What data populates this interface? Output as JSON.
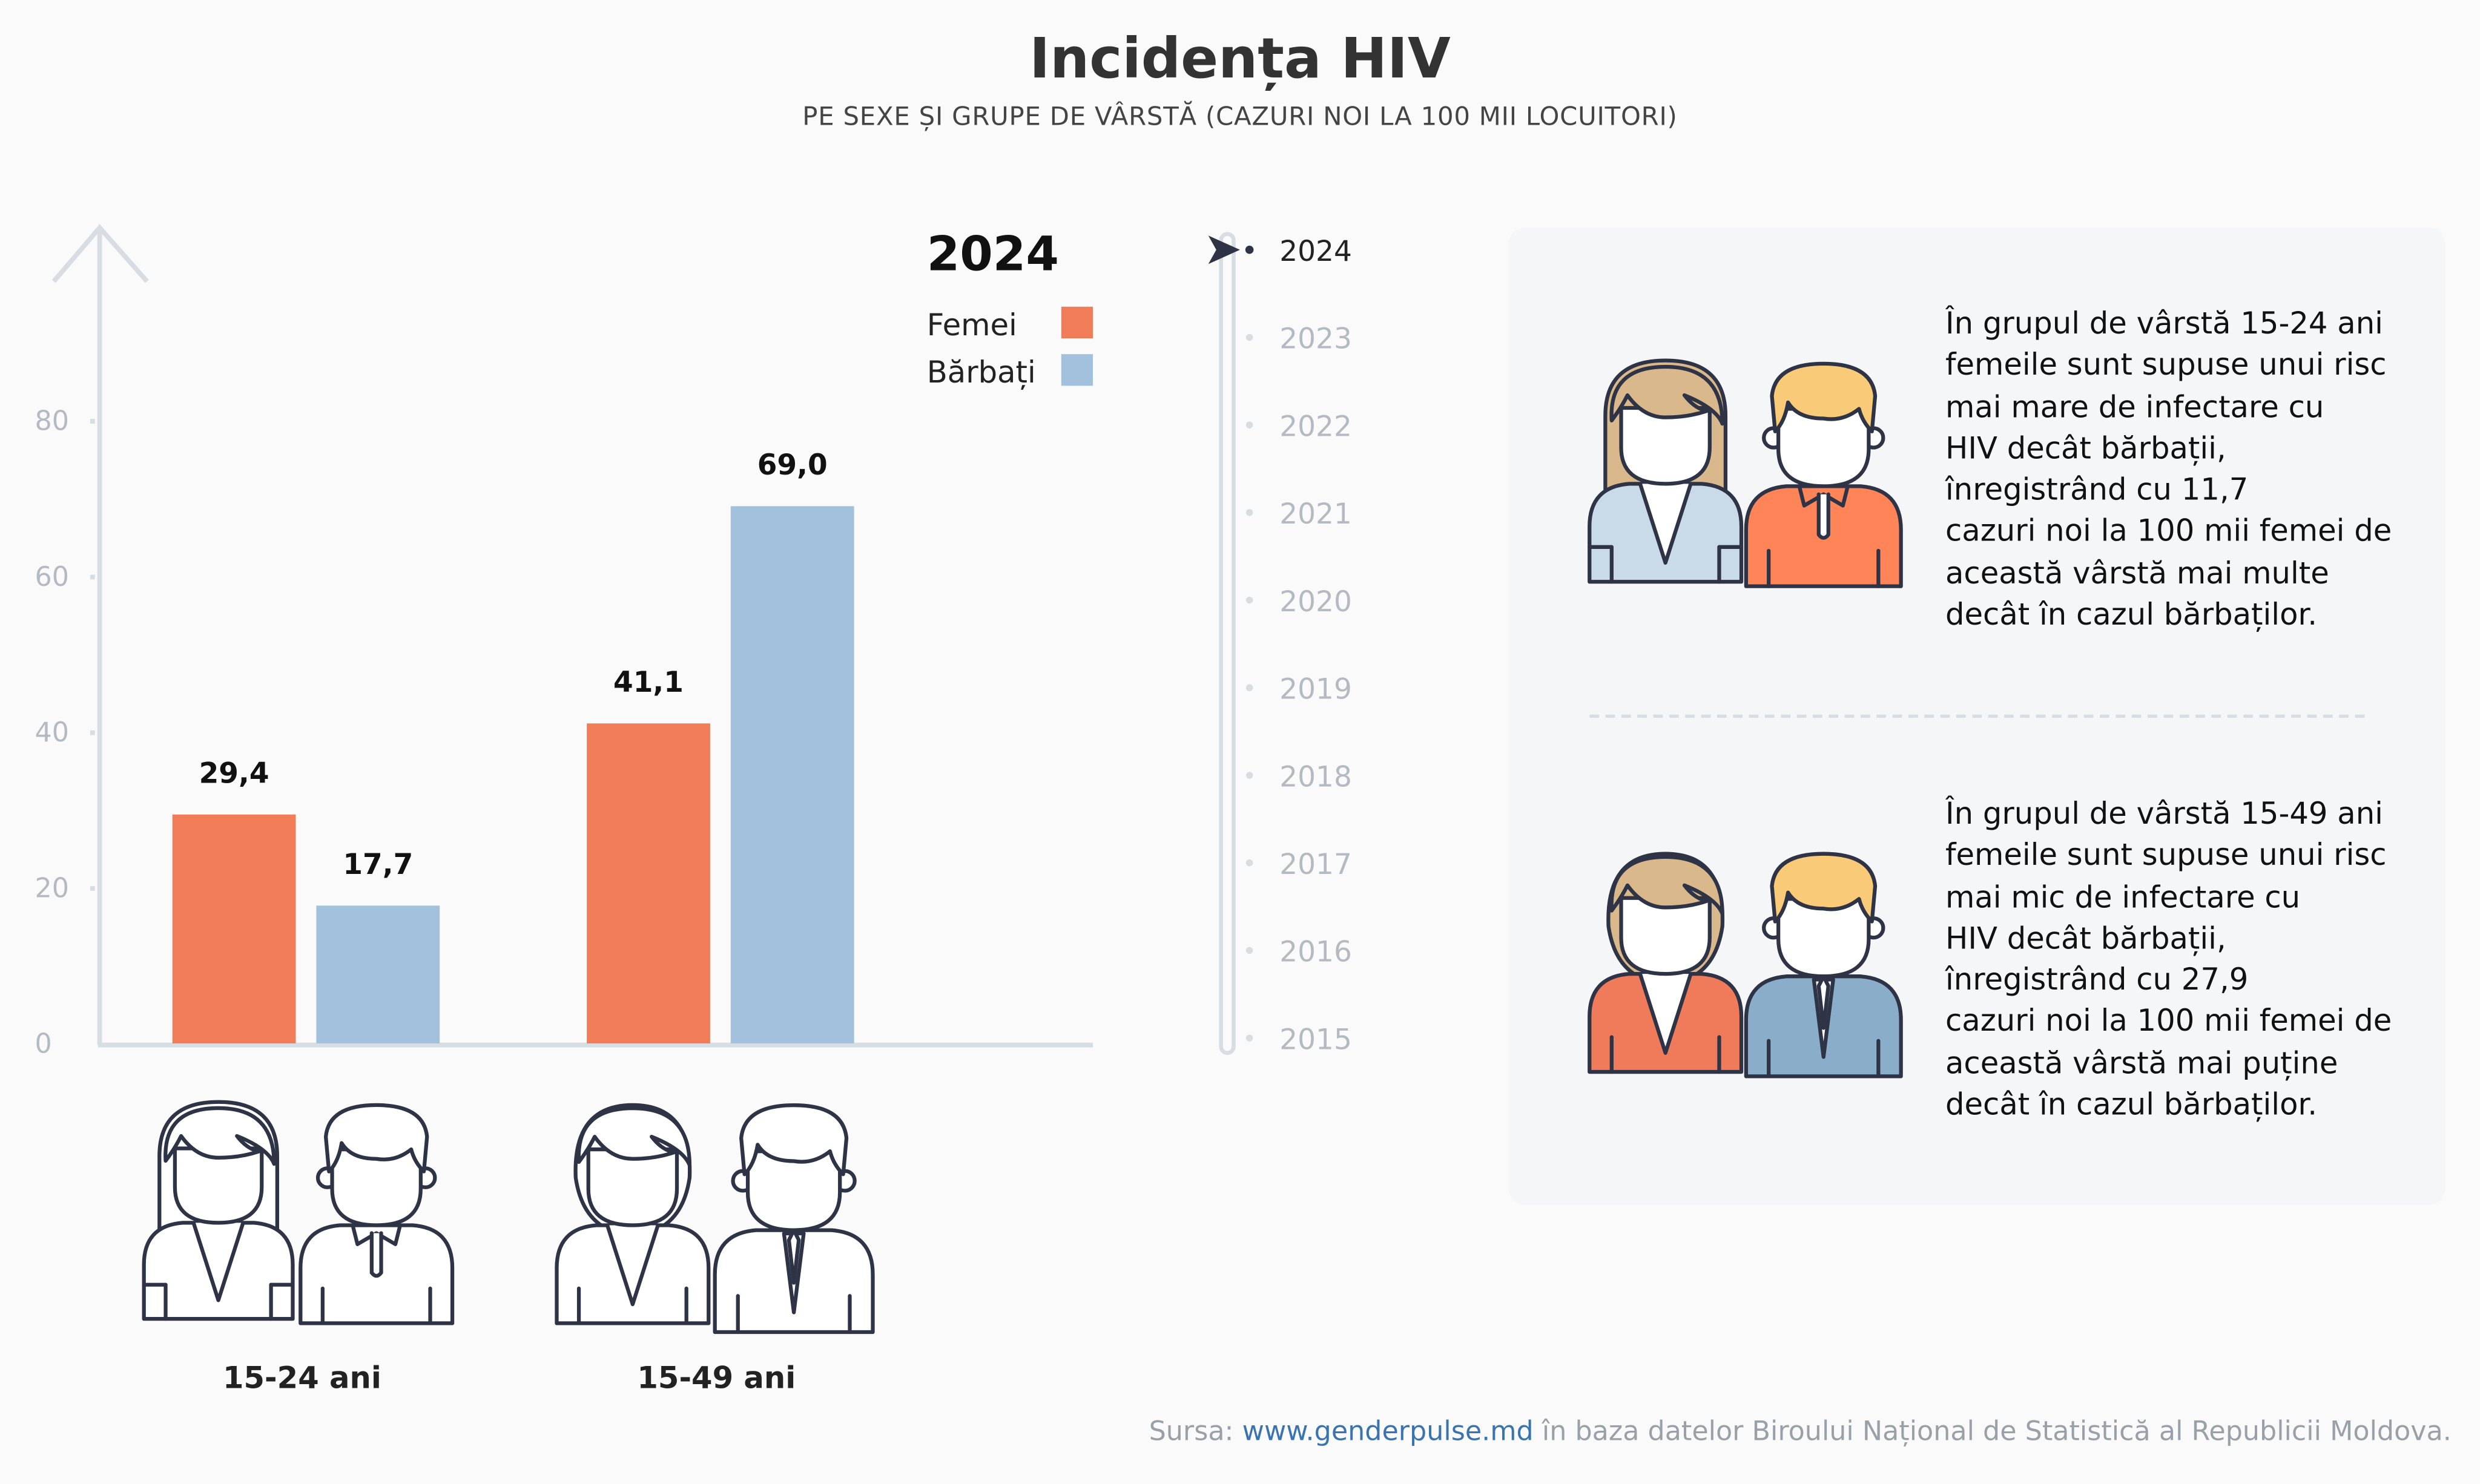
{
  "title": "Incidența HIV",
  "subtitle": "PE SEXE ȘI GRUPE DE VÂRSTĂ (CAZURI NOI LA 100 MII LOCUITORI)",
  "chart_data": {
    "type": "bar",
    "year": "2024",
    "categories": [
      "15-24 ani",
      "15-49 ani"
    ],
    "series": [
      {
        "name": "Femei",
        "values": [
          29.4,
          41.1
        ],
        "labels": [
          "29,4",
          "41,1"
        ],
        "color": "#f07c58"
      },
      {
        "name": "Bărbați",
        "values": [
          17.7,
          69.0
        ],
        "labels": [
          "17,7",
          "69,0"
        ],
        "color": "#a2c1dc"
      }
    ],
    "ylim": [
      0,
      80
    ],
    "yticks": [
      "0",
      "20",
      "40",
      "60",
      "80"
    ],
    "grid": false,
    "legend": "top-right"
  },
  "timeline": {
    "years": [
      "2024",
      "2023",
      "2022",
      "2021",
      "2020",
      "2019",
      "2018",
      "2017",
      "2016",
      "2015"
    ],
    "selected": "2024"
  },
  "notes": [
    {
      "text": "În grupul de vârstă 15-24 ani\nfemeile sunt supuse unui risc\nmai mare de infectare cu\n HIV decât bărbații,\n înregistrând cu 11,7\ncazuri noi la 100 mii femei de\naceastă vârstă mai multe\ndecât în cazul bărbaților."
    },
    {
      "text": "În grupul de vârstă 15-49 ani\nfemeile sunt supuse unui risc\nmai mic de infectare cu\n HIV decât bărbații,\n înregistrând cu 27,9\ncazuri noi la 100 mii femei de\naceastă vârstă mai puține\ndecât în cazul bărbaților."
    }
  ],
  "source": {
    "prefix": "Sursa: ",
    "link": "www.genderpulse.md",
    "suffix": " în baza datelor Biroului Național de Statistică al Republicii Moldova."
  },
  "colors": {
    "outline": "#2e3345",
    "hair_f": "#d9b98c",
    "hair_m": "#f9cb78",
    "shirt_orange": "#ff8559",
    "jacket_orange": "#ef7b5a",
    "blouse_blue": "#c9dae9",
    "suit_blue": "#8aadc9"
  }
}
